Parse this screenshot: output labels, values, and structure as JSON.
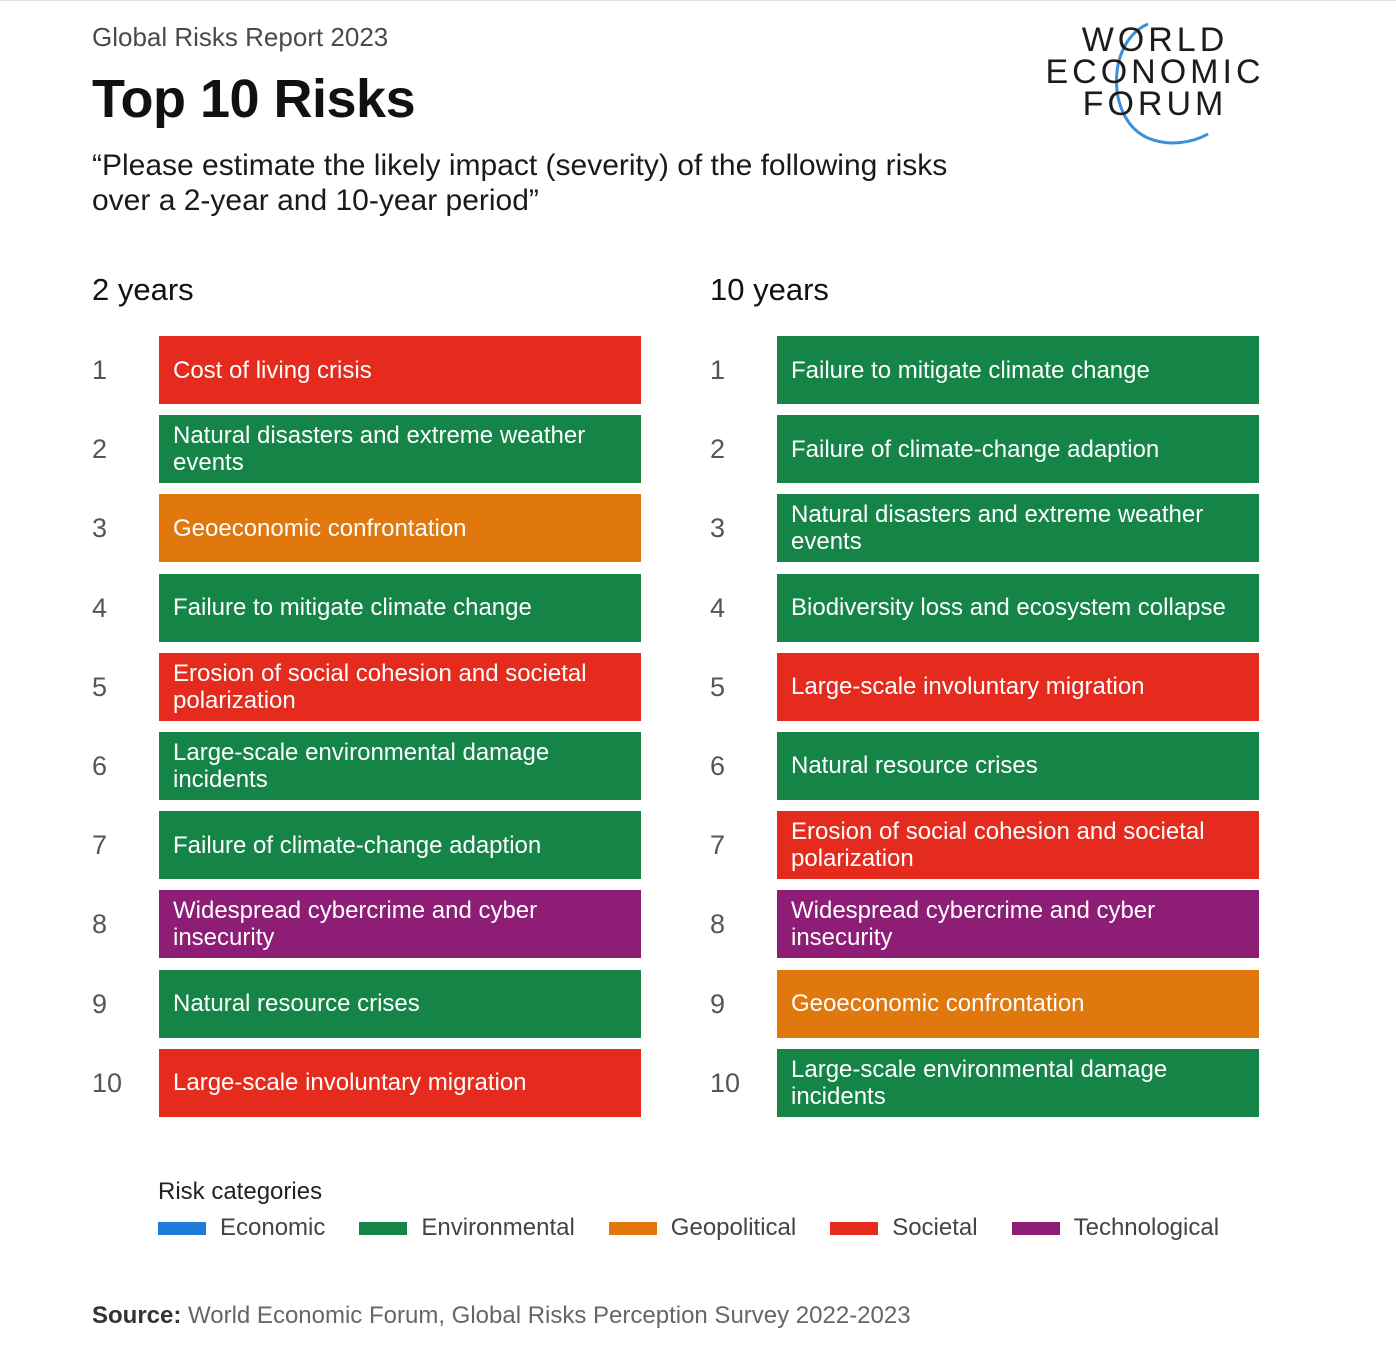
{
  "header": {
    "report": "Global Risks Report 2023",
    "title": "Top 10 Risks",
    "subtitle": "“Please estimate the likely impact (severity) of the following risks over a 2-year and 10-year period”"
  },
  "logo": {
    "line1": "WORLD",
    "line2": "ECONOMIC",
    "line3": "FORUM"
  },
  "colors": {
    "Economic": "#1f7bd6",
    "Environmental": "#158547",
    "Geopolitical": "#e0780d",
    "Societal": "#e52b1d",
    "Technological": "#8e1d76"
  },
  "columns": [
    {
      "heading": "2 years",
      "items": [
        {
          "rank": "1",
          "label": "Cost of living crisis",
          "category": "Societal"
        },
        {
          "rank": "2",
          "label": "Natural disasters and extreme weather events",
          "category": "Environmental"
        },
        {
          "rank": "3",
          "label": "Geoeconomic confrontation",
          "category": "Geopolitical"
        },
        {
          "rank": "4",
          "label": "Failure to mitigate climate change",
          "category": "Environmental"
        },
        {
          "rank": "5",
          "label": "Erosion of social cohesion and societal polarization",
          "category": "Societal"
        },
        {
          "rank": "6",
          "label": "Large-scale environmental damage incidents",
          "category": "Environmental"
        },
        {
          "rank": "7",
          "label": "Failure of climate-change adaption",
          "category": "Environmental"
        },
        {
          "rank": "8",
          "label": "Widespread cybercrime and cyber insecurity",
          "category": "Technological"
        },
        {
          "rank": "9",
          "label": "Natural resource crises",
          "category": "Environmental"
        },
        {
          "rank": "10",
          "label": "Large-scale involuntary migration",
          "category": "Societal"
        }
      ]
    },
    {
      "heading": "10 years",
      "items": [
        {
          "rank": "1",
          "label": "Failure to mitigate climate change",
          "category": "Environmental"
        },
        {
          "rank": "2",
          "label": "Failure of climate-change adaption",
          "category": "Environmental"
        },
        {
          "rank": "3",
          "label": "Natural disasters and extreme weather events",
          "category": "Environmental"
        },
        {
          "rank": "4",
          "label": "Biodiversity loss and ecosystem collapse",
          "category": "Environmental"
        },
        {
          "rank": "5",
          "label": "Large-scale involuntary migration",
          "category": "Societal"
        },
        {
          "rank": "6",
          "label": "Natural resource crises",
          "category": "Environmental"
        },
        {
          "rank": "7",
          "label": "Erosion of social cohesion and societal polarization",
          "category": "Societal"
        },
        {
          "rank": "8",
          "label": "Widespread cybercrime and cyber insecurity",
          "category": "Technological"
        },
        {
          "rank": "9",
          "label": "Geoeconomic confrontation",
          "category": "Geopolitical"
        },
        {
          "rank": "10",
          "label": "Large-scale environmental damage incidents",
          "category": "Environmental"
        }
      ]
    }
  ],
  "legend": {
    "title": "Risk categories",
    "items": [
      "Economic",
      "Environmental",
      "Geopolitical",
      "Societal",
      "Technological"
    ]
  },
  "source": {
    "label": "Source:",
    "text": " World Economic Forum, Global Risks Perception Survey 2022-2023"
  }
}
